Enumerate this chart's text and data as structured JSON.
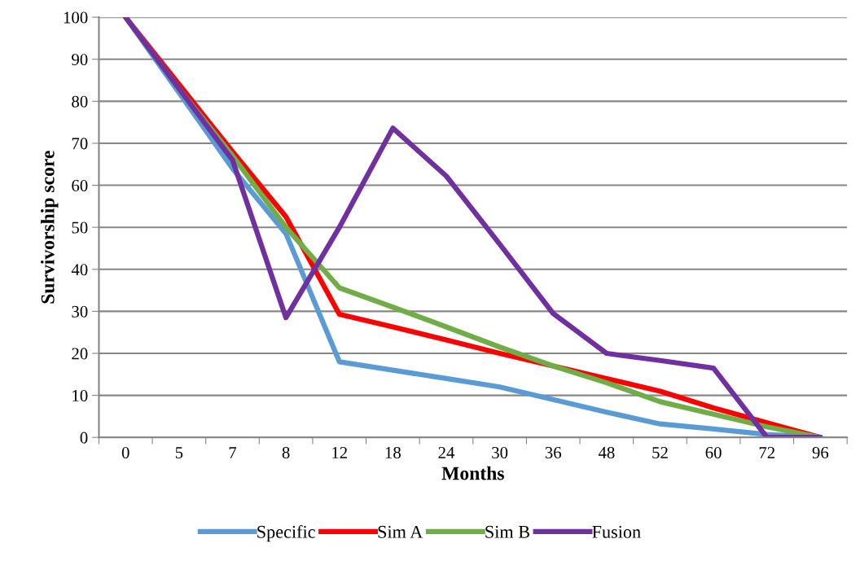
{
  "chart_data": {
    "type": "line",
    "xlabel": "Months",
    "ylabel": "Survivorship score",
    "categories": [
      "0",
      "5",
      "7",
      "8",
      "12",
      "18",
      "24",
      "30",
      "36",
      "48",
      "52",
      "60",
      "72",
      "96"
    ],
    "ylim": [
      0,
      100
    ],
    "yticks": [
      0,
      10,
      20,
      30,
      40,
      50,
      60,
      70,
      80,
      90,
      100
    ],
    "grid": "y",
    "legend": "bottom",
    "marker": "none",
    "line_style": "solid",
    "series": [
      {
        "name": "Specific",
        "color": "#5b9bd5",
        "values": [
          100,
          82,
          64,
          48.5,
          18,
          16,
          14,
          12,
          9,
          6,
          3.2,
          2,
          0.7,
          0
        ]
      },
      {
        "name": "Sim A",
        "color": "#ff0000",
        "values": [
          100,
          84,
          68,
          52.5,
          29.3,
          26.3,
          23.2,
          20,
          17,
          14,
          11,
          7,
          3.5,
          0
        ]
      },
      {
        "name": "Sim B",
        "color": "#70ad47",
        "values": [
          100,
          83,
          67,
          50,
          35.6,
          31,
          26.3,
          21.5,
          17,
          13,
          8.5,
          5.5,
          2.5,
          0
        ]
      },
      {
        "name": "Fusion",
        "color": "#7030a0",
        "values": [
          100,
          83,
          66,
          28.5,
          50,
          73.6,
          62.2,
          46,
          29.5,
          20,
          18.3,
          16.5,
          0,
          0
        ]
      }
    ]
  }
}
